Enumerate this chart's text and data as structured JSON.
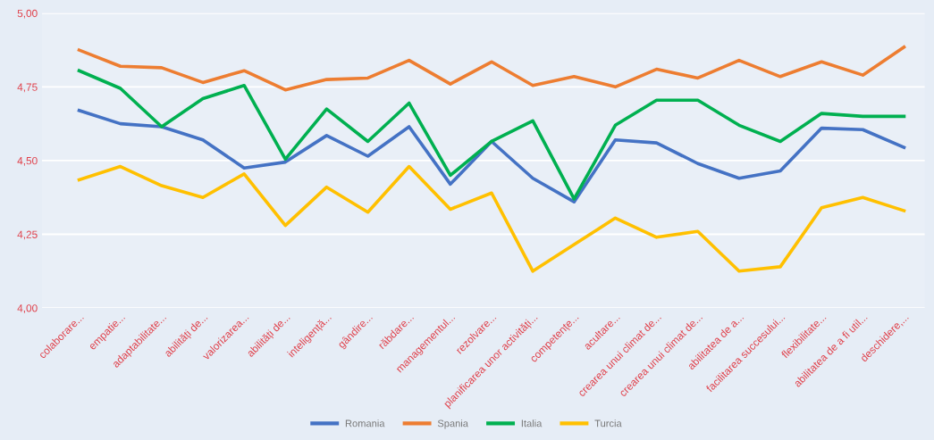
{
  "chart_data": {
    "type": "line",
    "categories": [
      "colaborare...",
      "empatie...",
      "adaptabilitate...",
      "abilități de...",
      "valorizarea...",
      "abilități de...",
      "inteligență...",
      "gândire...",
      "răbdare...",
      "managementul...",
      "rezolvare...",
      "planificarea unor activități...",
      "competențe...",
      "acultare...",
      "crearea unui climat de...",
      "crearea unui climat de...",
      "abilitatea de a...",
      "facilitarea succesului...",
      "flexibilitate...",
      "abilitatea de a fi util...",
      "deschidere,..."
    ],
    "series": [
      {
        "name": "Romania",
        "color": "#4472c4",
        "values": [
          4.67,
          4.625,
          4.615,
          4.57,
          4.475,
          4.495,
          4.585,
          4.515,
          4.615,
          4.42,
          4.565,
          4.44,
          4.36,
          4.57,
          4.56,
          4.49,
          4.44,
          4.465,
          4.61,
          4.605,
          4.545
        ]
      },
      {
        "name": "Spania",
        "color": "#ed7d31",
        "values": [
          4.875,
          4.82,
          4.815,
          4.765,
          4.805,
          4.74,
          4.775,
          4.78,
          4.84,
          4.76,
          4.835,
          4.755,
          4.785,
          4.75,
          4.81,
          4.78,
          4.84,
          4.785,
          4.835,
          4.79,
          4.885
        ]
      },
      {
        "name": "Italia",
        "color": "#00b050",
        "values": [
          4.805,
          4.745,
          4.615,
          4.71,
          4.755,
          4.505,
          4.675,
          4.565,
          4.695,
          4.45,
          4.565,
          4.635,
          4.37,
          4.62,
          4.705,
          4.705,
          4.62,
          4.565,
          4.66,
          4.65,
          4.65
        ]
      },
      {
        "name": "Turcia",
        "color": "#ffc000",
        "values": [
          4.435,
          4.48,
          4.415,
          4.375,
          4.455,
          4.28,
          4.41,
          4.325,
          4.48,
          4.335,
          4.39,
          4.125,
          4.215,
          4.305,
          4.24,
          4.26,
          4.125,
          4.14,
          4.34,
          4.375,
          4.33
        ]
      }
    ],
    "ylim": [
      4.0,
      5.0
    ],
    "yticks": [
      {
        "value": 4.0,
        "label": "4,00"
      },
      {
        "value": 4.25,
        "label": "4,25"
      },
      {
        "value": 4.5,
        "label": "4,50"
      },
      {
        "value": 4.75,
        "label": "4,75"
      },
      {
        "value": 5.0,
        "label": "5,00"
      }
    ],
    "grid": "y",
    "legend": "bottom",
    "marker": "none",
    "line_style": "solid"
  }
}
